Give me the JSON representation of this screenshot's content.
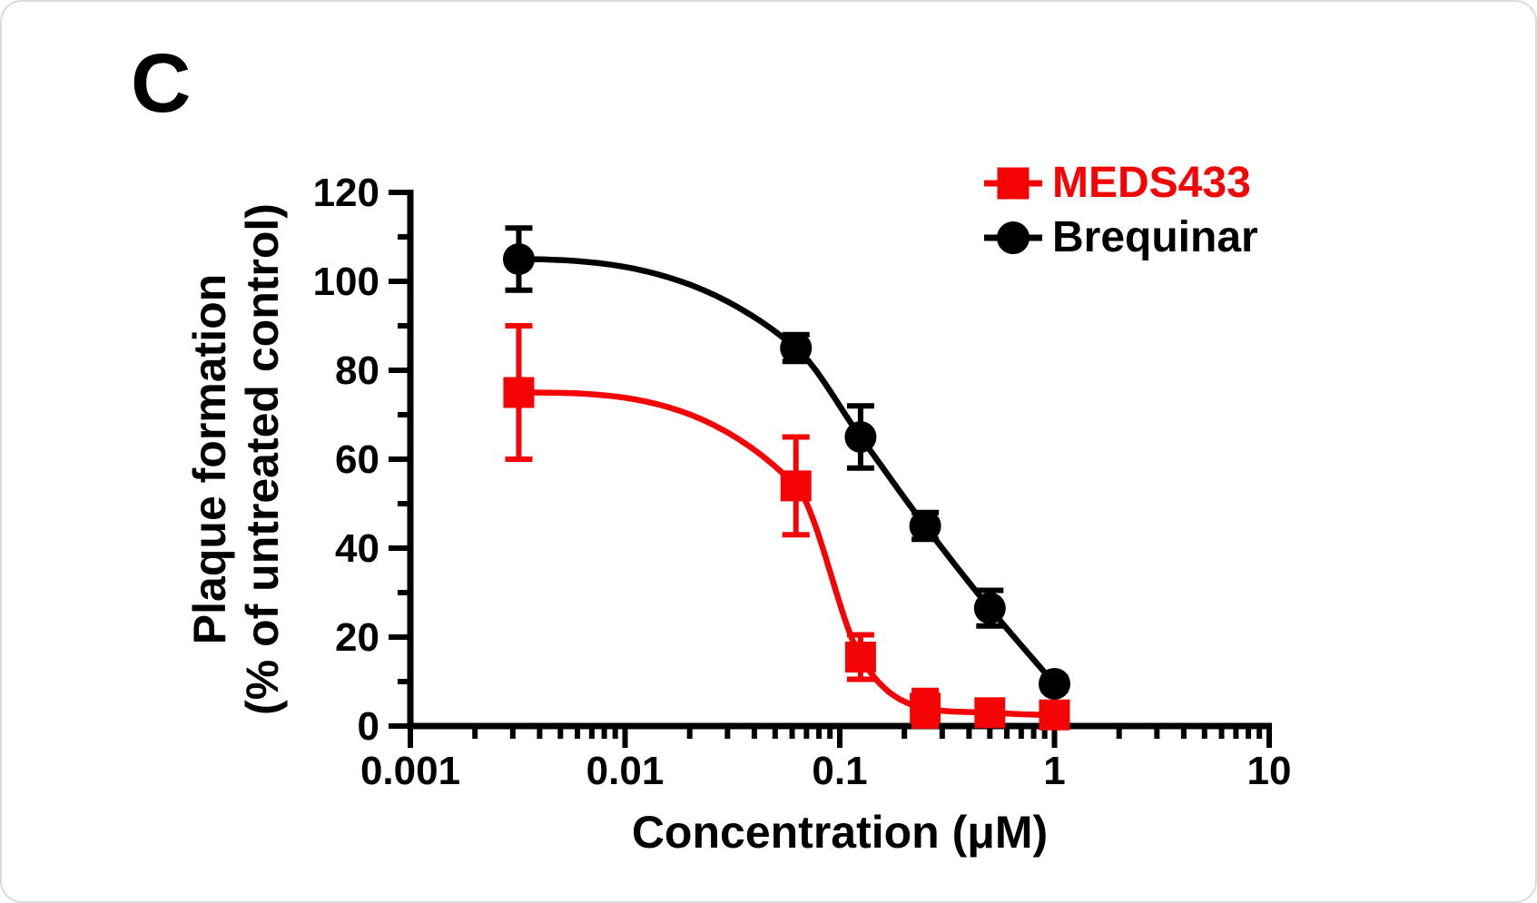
{
  "figure": {
    "background": "#ffffff",
    "border_color": "#dcdcdc"
  },
  "chart_data": {
    "type": "line",
    "panel_label": "C",
    "title": "",
    "xlabel": "Concentration (μM)",
    "ylabel_line1": "Plaque formation",
    "ylabel_line2": "(% of untreated control)",
    "x_scale": "log",
    "xlim": [
      0.001,
      10
    ],
    "ylim": [
      0,
      120
    ],
    "x_ticks": [
      0.001,
      0.01,
      0.1,
      1,
      10
    ],
    "x_tick_labels": [
      "0.001",
      "0.01",
      "0.1",
      "1",
      "10"
    ],
    "y_major_ticks": [
      0,
      20,
      40,
      60,
      80,
      100,
      120
    ],
    "y_minor_ticks": [
      10,
      30,
      50,
      70,
      90,
      110
    ],
    "grid": false,
    "legend_position": "top-right",
    "axis_color": "#000000",
    "x": [
      0.0032,
      0.0625,
      0.125,
      0.25,
      0.5,
      1
    ],
    "series": [
      {
        "name": "MEDS433",
        "color": "#f40404",
        "marker": "square",
        "values": [
          75,
          54,
          15.5,
          4,
          3,
          2.5
        ],
        "errors": [
          15,
          11,
          5,
          4,
          2,
          2
        ],
        "curve": {
          "flat_start": true,
          "flat_end": true
        }
      },
      {
        "name": "Brequinar",
        "color": "#000000",
        "marker": "circle",
        "values": [
          105,
          85,
          65,
          45,
          26.5,
          9.5
        ],
        "errors": [
          7,
          3,
          7,
          3,
          4,
          1.5
        ],
        "curve": {
          "flat_start": true,
          "flat_end": false
        }
      }
    ]
  }
}
